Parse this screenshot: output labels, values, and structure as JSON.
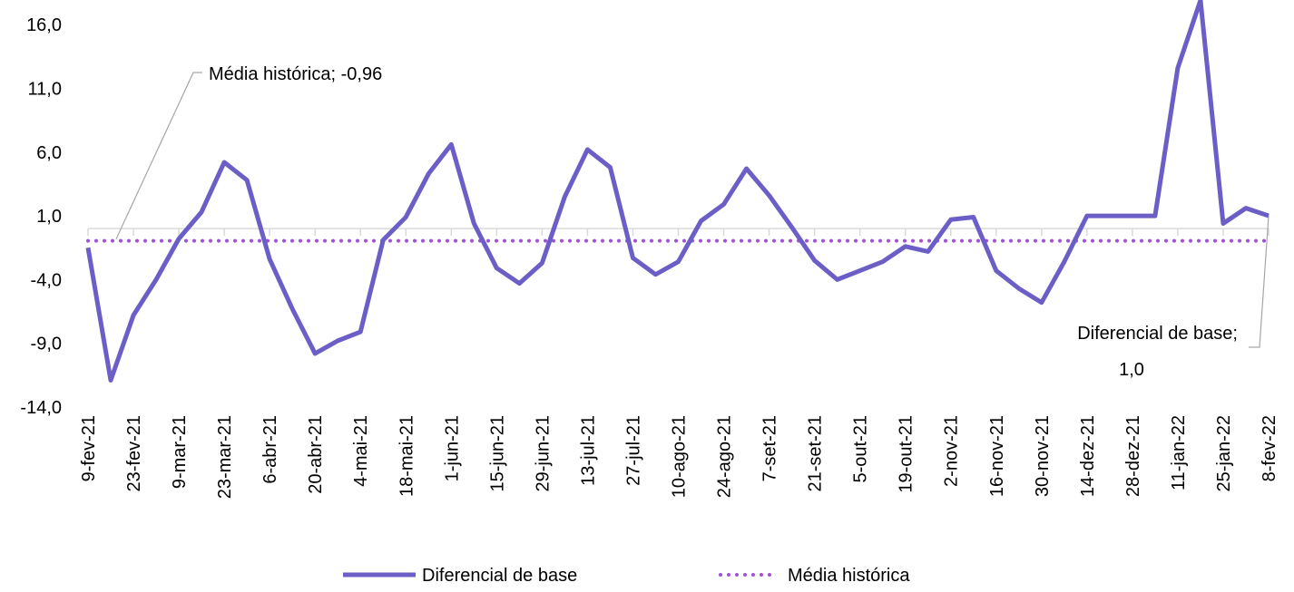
{
  "chart_data": {
    "type": "line",
    "categories": [
      "9-fev-21",
      null,
      "23-fev-21",
      null,
      "9-mar-21",
      null,
      "23-mar-21",
      null,
      "6-abr-21",
      null,
      "20-abr-21",
      null,
      "4-mai-21",
      null,
      "18-mai-21",
      null,
      "1-jun-21",
      null,
      "15-jun-21",
      null,
      "29-jun-21",
      null,
      "13-jul-21",
      null,
      "27-jul-21",
      null,
      "10-ago-21",
      null,
      "24-ago-21",
      null,
      "7-set-21",
      null,
      "21-set-21",
      null,
      "5-out-21",
      null,
      "19-out-21",
      null,
      "2-nov-21",
      null,
      "16-nov-21",
      null,
      "30-nov-21",
      null,
      "14-dez-21",
      null,
      "28-dez-21",
      null,
      "11-jan-22",
      null,
      "25-jan-22",
      null,
      "8-fev-22"
    ],
    "series": [
      {
        "name": "Diferencial de base",
        "color": "#6b5fc7",
        "style": "solid",
        "values": [
          -1.5,
          -11.9,
          -6.8,
          -4.0,
          -0.8,
          1.3,
          5.2,
          3.8,
          -2.4,
          -6.3,
          -9.8,
          -8.8,
          -8.1,
          -0.9,
          0.9,
          4.3,
          6.6,
          0.4,
          -3.1,
          -4.3,
          -2.7,
          2.5,
          6.2,
          4.8,
          -2.3,
          -3.6,
          -2.6,
          0.6,
          1.9,
          4.7,
          2.6,
          0.1,
          -2.5,
          -4.0,
          -3.3,
          -2.6,
          -1.4,
          -1.8,
          0.7,
          0.9,
          -3.3,
          -4.7,
          -5.8,
          -2.6,
          1.0,
          1.0,
          1.0,
          1.0,
          12.6,
          17.9,
          0.4,
          1.6,
          1.0
        ]
      },
      {
        "name": "Média histórica",
        "color": "#a24fd9",
        "style": "dotted",
        "values": [
          -0.96,
          -0.96,
          -0.96,
          -0.96,
          -0.96,
          -0.96,
          -0.96,
          -0.96,
          -0.96,
          -0.96,
          -0.96,
          -0.96,
          -0.96,
          -0.96,
          -0.96,
          -0.96,
          -0.96,
          -0.96,
          -0.96,
          -0.96,
          -0.96,
          -0.96,
          -0.96,
          -0.96,
          -0.96,
          -0.96,
          -0.96,
          -0.96,
          -0.96,
          -0.96,
          -0.96,
          -0.96,
          -0.96,
          -0.96,
          -0.96,
          -0.96,
          -0.96,
          -0.96,
          -0.96,
          -0.96,
          -0.96,
          -0.96,
          -0.96,
          -0.96,
          -0.96,
          -0.96,
          -0.96,
          -0.96,
          -0.96,
          -0.96,
          -0.96,
          -0.96,
          -0.96
        ]
      }
    ],
    "ylim": [
      -14,
      18
    ],
    "yticks": [
      {
        "value": -14,
        "label": "-14,0"
      },
      {
        "value": -9,
        "label": "-9,0"
      },
      {
        "value": -4,
        "label": "-4,0"
      },
      {
        "value": 1,
        "label": "1,0"
      },
      {
        "value": 6,
        "label": "6,0"
      },
      {
        "value": 11,
        "label": "11,0"
      },
      {
        "value": 16,
        "label": "16,0"
      }
    ],
    "annotations": [
      [
        "Média histórica; -0,96"
      ],
      [
        "Diferencial de base;",
        "1,0"
      ]
    ],
    "grid": false
  }
}
